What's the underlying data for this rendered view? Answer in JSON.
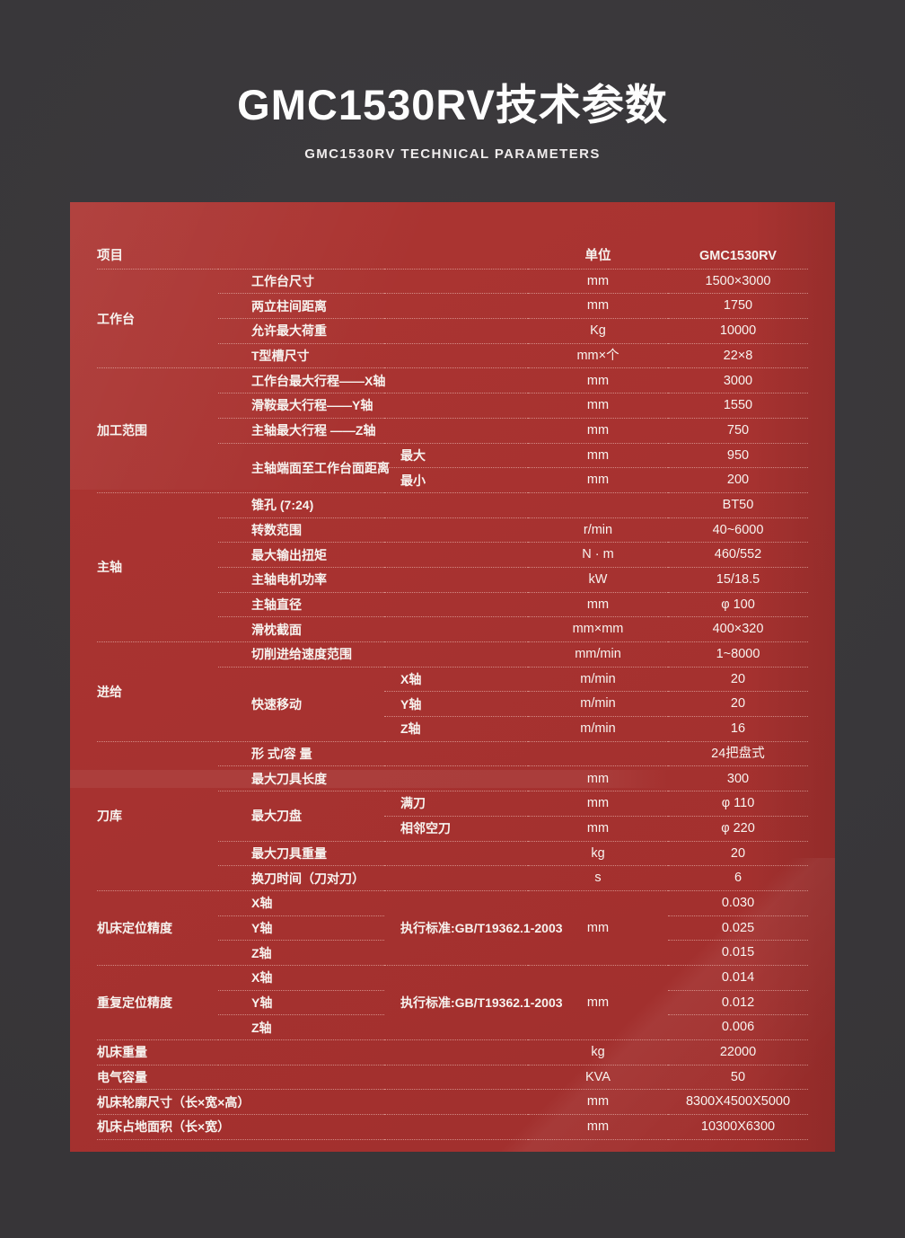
{
  "colors": {
    "page_bg": "#3a383b",
    "panel_red": "#a73230",
    "separator": "rgba(248,214,204,0.55)",
    "text": "#f7f3ef"
  },
  "header": {
    "title": "GMC1530RV技术参数",
    "subtitle": "GMC1530RV TECHNICAL PARAMETERS"
  },
  "table": {
    "columns": {
      "item": "项目",
      "unit": "单位",
      "model": "GMC1530RV"
    },
    "rows": [
      {
        "cells": [
          {
            "t": "项目",
            "k": "sec",
            "h": 1,
            "n": "item-header-cell"
          },
          {
            "t": "",
            "k": "par",
            "c": 2
          },
          {
            "t": "单位",
            "k": "unit",
            "h": 1,
            "n": "unit-header-cell"
          },
          {
            "t": "GMC1530RV",
            "k": "val",
            "h": 1,
            "n": "model-header-cell"
          }
        ]
      },
      {
        "cells": [
          {
            "t": "工作台",
            "k": "sec",
            "r": 4
          },
          {
            "t": "工作台尺寸",
            "k": "par",
            "c": 2
          },
          {
            "t": "mm",
            "k": "unit"
          },
          {
            "t": "1500×3000",
            "k": "val"
          }
        ]
      },
      {
        "cells": [
          {
            "t": "两立柱间距离",
            "k": "par",
            "c": 2
          },
          {
            "t": "mm",
            "k": "unit"
          },
          {
            "t": "1750",
            "k": "val"
          }
        ]
      },
      {
        "cells": [
          {
            "t": "允许最大荷重",
            "k": "par",
            "c": 2
          },
          {
            "t": "Kg",
            "k": "unit"
          },
          {
            "t": "10000",
            "k": "val"
          }
        ]
      },
      {
        "cells": [
          {
            "t": "T型槽尺寸",
            "k": "par",
            "c": 2
          },
          {
            "t": "mm×个",
            "k": "unit"
          },
          {
            "t": "22×8",
            "k": "val"
          }
        ]
      },
      {
        "cells": [
          {
            "t": "加工范围",
            "k": "sec",
            "r": 5
          },
          {
            "t": "工作台最大行程——X轴",
            "k": "par",
            "c": 2
          },
          {
            "t": "mm",
            "k": "unit"
          },
          {
            "t": "3000",
            "k": "val"
          }
        ]
      },
      {
        "cells": [
          {
            "t": "滑鞍最大行程——Y轴",
            "k": "par",
            "c": 2
          },
          {
            "t": "mm",
            "k": "unit"
          },
          {
            "t": "1550",
            "k": "val"
          }
        ]
      },
      {
        "cells": [
          {
            "t": "主轴最大行程 ——Z轴",
            "k": "par",
            "c": 2
          },
          {
            "t": "mm",
            "k": "unit"
          },
          {
            "t": "750",
            "k": "val"
          }
        ]
      },
      {
        "cells": [
          {
            "t": "主轴端面至工作台面距离",
            "k": "par",
            "r": 2
          },
          {
            "t": "最大",
            "k": "sub"
          },
          {
            "t": "mm",
            "k": "unit"
          },
          {
            "t": "950",
            "k": "val"
          }
        ]
      },
      {
        "cells": [
          {
            "t": "最小",
            "k": "sub"
          },
          {
            "t": "mm",
            "k": "unit"
          },
          {
            "t": "200",
            "k": "val"
          }
        ]
      },
      {
        "cells": [
          {
            "t": "主轴",
            "k": "sec",
            "r": 6
          },
          {
            "t": "锥孔 (7:24)",
            "k": "par",
            "c": 2
          },
          {
            "t": "",
            "k": "unit"
          },
          {
            "t": "BT50",
            "k": "val"
          }
        ]
      },
      {
        "cells": [
          {
            "t": "转数范围",
            "k": "par",
            "c": 2
          },
          {
            "t": "r/min",
            "k": "unit"
          },
          {
            "t": "40~6000",
            "k": "val"
          }
        ]
      },
      {
        "cells": [
          {
            "t": "最大输出扭矩",
            "k": "par",
            "c": 2
          },
          {
            "t": "N · m",
            "k": "unit"
          },
          {
            "t": "460/552",
            "k": "val"
          }
        ]
      },
      {
        "cells": [
          {
            "t": "主轴电机功率",
            "k": "par",
            "c": 2
          },
          {
            "t": "kW",
            "k": "unit"
          },
          {
            "t": "15/18.5",
            "k": "val"
          }
        ]
      },
      {
        "cells": [
          {
            "t": "主轴直径",
            "k": "par",
            "c": 2
          },
          {
            "t": "mm",
            "k": "unit"
          },
          {
            "t": "φ 100",
            "k": "val"
          }
        ]
      },
      {
        "cells": [
          {
            "t": "滑枕截面",
            "k": "par",
            "c": 2
          },
          {
            "t": "mm×mm",
            "k": "unit"
          },
          {
            "t": "400×320",
            "k": "val"
          }
        ]
      },
      {
        "cells": [
          {
            "t": "进给",
            "k": "sec",
            "r": 4
          },
          {
            "t": "切削进给速度范围",
            "k": "par",
            "c": 2
          },
          {
            "t": "mm/min",
            "k": "unit"
          },
          {
            "t": "1~8000",
            "k": "val"
          }
        ]
      },
      {
        "cells": [
          {
            "t": "快速移动",
            "k": "par",
            "r": 3
          },
          {
            "t": "X轴",
            "k": "sub"
          },
          {
            "t": "m/min",
            "k": "unit"
          },
          {
            "t": "20",
            "k": "val"
          }
        ]
      },
      {
        "cells": [
          {
            "t": "Y轴",
            "k": "sub"
          },
          {
            "t": "m/min",
            "k": "unit"
          },
          {
            "t": "20",
            "k": "val"
          }
        ]
      },
      {
        "cells": [
          {
            "t": "Z轴",
            "k": "sub"
          },
          {
            "t": "m/min",
            "k": "unit"
          },
          {
            "t": "16",
            "k": "val"
          }
        ]
      },
      {
        "cells": [
          {
            "t": "刀库",
            "k": "sec",
            "r": 6
          },
          {
            "t": "形 式/容 量",
            "k": "par",
            "c": 2
          },
          {
            "t": "",
            "k": "unit"
          },
          {
            "t": "24把盘式",
            "k": "val"
          }
        ]
      },
      {
        "cells": [
          {
            "t": "最大刀具长度",
            "k": "par",
            "c": 2
          },
          {
            "t": "mm",
            "k": "unit"
          },
          {
            "t": "300",
            "k": "val"
          }
        ]
      },
      {
        "cells": [
          {
            "t": "最大刀盘",
            "k": "par",
            "r": 2
          },
          {
            "t": "满刀",
            "k": "sub"
          },
          {
            "t": "mm",
            "k": "unit"
          },
          {
            "t": "φ 110",
            "k": "val"
          }
        ]
      },
      {
        "cells": [
          {
            "t": "相邻空刀",
            "k": "sub"
          },
          {
            "t": "mm",
            "k": "unit"
          },
          {
            "t": "φ 220",
            "k": "val"
          }
        ]
      },
      {
        "cells": [
          {
            "t": "最大刀具重量",
            "k": "par",
            "c": 2
          },
          {
            "t": "kg",
            "k": "unit"
          },
          {
            "t": "20",
            "k": "val"
          }
        ]
      },
      {
        "cells": [
          {
            "t": "换刀时间（刀对刀）",
            "k": "par",
            "c": 2
          },
          {
            "t": "s",
            "k": "unit"
          },
          {
            "t": "6",
            "k": "val"
          }
        ]
      },
      {
        "cells": [
          {
            "t": "机床定位精度",
            "k": "sec",
            "r": 3
          },
          {
            "t": "X轴",
            "k": "par"
          },
          {
            "t": "执行标准:GB/T19362.1-2003",
            "k": "sub",
            "r": 3
          },
          {
            "t": "mm",
            "k": "unit",
            "r": 3
          },
          {
            "t": "0.030",
            "k": "val"
          }
        ]
      },
      {
        "cells": [
          {
            "t": "Y轴",
            "k": "par"
          },
          {
            "t": "0.025",
            "k": "val"
          }
        ]
      },
      {
        "cells": [
          {
            "t": "Z轴",
            "k": "par"
          },
          {
            "t": "0.015",
            "k": "val"
          }
        ]
      },
      {
        "cells": [
          {
            "t": "重复定位精度",
            "k": "sec",
            "r": 3
          },
          {
            "t": "X轴",
            "k": "par"
          },
          {
            "t": "执行标准:GB/T19362.1-2003",
            "k": "sub",
            "r": 3
          },
          {
            "t": "mm",
            "k": "unit",
            "r": 3
          },
          {
            "t": "0.014",
            "k": "val"
          }
        ]
      },
      {
        "cells": [
          {
            "t": "Y轴",
            "k": "par"
          },
          {
            "t": "0.012",
            "k": "val"
          }
        ]
      },
      {
        "cells": [
          {
            "t": "Z轴",
            "k": "par"
          },
          {
            "t": "0.006",
            "k": "val"
          }
        ]
      },
      {
        "cells": [
          {
            "t": "机床重量",
            "k": "sec",
            "c": 3
          },
          {
            "t": "kg",
            "k": "unit"
          },
          {
            "t": "22000",
            "k": "val"
          }
        ]
      },
      {
        "cells": [
          {
            "t": "电气容量",
            "k": "sec",
            "c": 3
          },
          {
            "t": "KVA",
            "k": "unit"
          },
          {
            "t": "50",
            "k": "val"
          }
        ]
      },
      {
        "cells": [
          {
            "t": "机床轮廓尺寸（长×宽×高）",
            "k": "sec",
            "c": 3
          },
          {
            "t": "mm",
            "k": "unit"
          },
          {
            "t": "8300X4500X5000",
            "k": "val"
          }
        ]
      },
      {
        "cells": [
          {
            "t": "机床占地面积（长×宽）",
            "k": "sec",
            "c": 3
          },
          {
            "t": "mm",
            "k": "unit"
          },
          {
            "t": "10300X6300",
            "k": "val"
          }
        ]
      }
    ]
  }
}
